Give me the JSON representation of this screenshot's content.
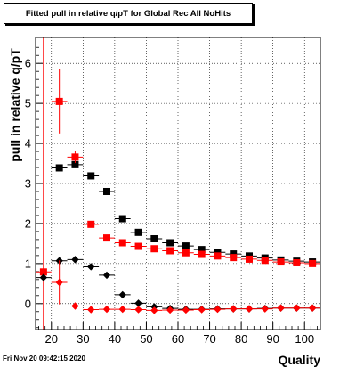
{
  "title": "Fitted pull in relative q/pT for Global Rec All NoHits",
  "timestamp": "Fri Nov 20 09:42:15 2020",
  "chart_data": {
    "type": "scatter",
    "title": "Fitted pull in relative q/pT for Global Rec All NoHits",
    "xlabel": "Quality",
    "ylabel": "pull in relative q/pT",
    "xlim": [
      15,
      105
    ],
    "ylim": [
      -0.65,
      6.65
    ],
    "x_ticks": [
      20,
      30,
      40,
      50,
      60,
      70,
      80,
      90,
      100
    ],
    "y_ticks": [
      0,
      1,
      2,
      3,
      4,
      5,
      6
    ],
    "grid": true,
    "vertical_line_x": 17.5,
    "series": [
      {
        "marker": "square",
        "color": "#000000",
        "points": [
          {
            "x": 22.5,
            "y": 3.39,
            "ey": 0.07,
            "ex": 2.5
          },
          {
            "x": 27.5,
            "y": 3.47,
            "ey": 0.05,
            "ex": 2.5
          },
          {
            "x": 32.5,
            "y": 3.19,
            "ey": 0.04,
            "ex": 2.5
          },
          {
            "x": 37.5,
            "y": 2.8,
            "ey": 0.04,
            "ex": 2.5
          },
          {
            "x": 42.5,
            "y": 2.12,
            "ey": 0.03,
            "ex": 2.5
          },
          {
            "x": 47.5,
            "y": 1.78,
            "ey": 0.03,
            "ex": 2.5
          },
          {
            "x": 52.5,
            "y": 1.62,
            "ey": 0.03,
            "ex": 2.5
          },
          {
            "x": 57.5,
            "y": 1.52,
            "ey": 0.03,
            "ex": 2.5
          },
          {
            "x": 62.5,
            "y": 1.44,
            "ey": 0.03,
            "ex": 2.5
          },
          {
            "x": 67.5,
            "y": 1.35,
            "ey": 0.03,
            "ex": 2.5
          },
          {
            "x": 72.5,
            "y": 1.28,
            "ey": 0.03,
            "ex": 2.5
          },
          {
            "x": 77.5,
            "y": 1.24,
            "ey": 0.03,
            "ex": 2.5
          },
          {
            "x": 82.5,
            "y": 1.19,
            "ey": 0.03,
            "ex": 2.5
          },
          {
            "x": 87.5,
            "y": 1.14,
            "ey": 0.03,
            "ex": 2.5
          },
          {
            "x": 92.5,
            "y": 1.09,
            "ey": 0.03,
            "ex": 2.5
          },
          {
            "x": 97.5,
            "y": 1.06,
            "ey": 0.03,
            "ex": 2.5
          },
          {
            "x": 102.5,
            "y": 1.04,
            "ey": 0.03,
            "ex": 2.5
          }
        ]
      },
      {
        "marker": "square",
        "color": "#ff0000",
        "points": [
          {
            "x": 17.5,
            "y": 0.79,
            "ey": 0.0,
            "ex": 2.5
          },
          {
            "x": 22.5,
            "y": 5.05,
            "ey": 0.8,
            "ex": 2.5
          },
          {
            "x": 27.5,
            "y": 3.66,
            "ey": 0.15,
            "ex": 2.5
          },
          {
            "x": 32.5,
            "y": 1.98,
            "ey": 0.05,
            "ex": 2.5
          },
          {
            "x": 37.5,
            "y": 1.64,
            "ey": 0.03,
            "ex": 2.5
          },
          {
            "x": 42.5,
            "y": 1.52,
            "ey": 0.03,
            "ex": 2.5
          },
          {
            "x": 47.5,
            "y": 1.43,
            "ey": 0.03,
            "ex": 2.5
          },
          {
            "x": 52.5,
            "y": 1.37,
            "ey": 0.03,
            "ex": 2.5
          },
          {
            "x": 57.5,
            "y": 1.32,
            "ey": 0.03,
            "ex": 2.5
          },
          {
            "x": 62.5,
            "y": 1.27,
            "ey": 0.03,
            "ex": 2.5
          },
          {
            "x": 67.5,
            "y": 1.23,
            "ey": 0.03,
            "ex": 2.5
          },
          {
            "x": 72.5,
            "y": 1.19,
            "ey": 0.03,
            "ex": 2.5
          },
          {
            "x": 77.5,
            "y": 1.15,
            "ey": 0.03,
            "ex": 2.5
          },
          {
            "x": 82.5,
            "y": 1.11,
            "ey": 0.03,
            "ex": 2.5
          },
          {
            "x": 87.5,
            "y": 1.08,
            "ey": 0.03,
            "ex": 2.5
          },
          {
            "x": 92.5,
            "y": 1.04,
            "ey": 0.03,
            "ex": 2.5
          },
          {
            "x": 97.5,
            "y": 1.02,
            "ey": 0.03,
            "ex": 2.5
          },
          {
            "x": 102.5,
            "y": 1.0,
            "ey": 0.03,
            "ex": 2.5
          }
        ]
      },
      {
        "marker": "diamond",
        "color": "#000000",
        "points": [
          {
            "x": 17.5,
            "y": 0.65,
            "ey": 0.0,
            "ex": 2.5
          },
          {
            "x": 22.5,
            "y": 1.07,
            "ey": 0.1,
            "ex": 2.5
          },
          {
            "x": 27.5,
            "y": 1.1,
            "ey": 0.05,
            "ex": 2.5
          },
          {
            "x": 32.5,
            "y": 0.92,
            "ey": 0.03,
            "ex": 2.5
          },
          {
            "x": 37.5,
            "y": 0.71,
            "ey": 0.03,
            "ex": 2.5
          },
          {
            "x": 42.5,
            "y": 0.22,
            "ey": 0.02,
            "ex": 2.5
          },
          {
            "x": 47.5,
            "y": 0.01,
            "ey": 0.02,
            "ex": 2.5
          },
          {
            "x": 52.5,
            "y": -0.08,
            "ey": 0.02,
            "ex": 2.5
          },
          {
            "x": 57.5,
            "y": -0.12,
            "ey": 0.02,
            "ex": 2.5
          },
          {
            "x": 62.5,
            "y": -0.14,
            "ey": 0.02,
            "ex": 2.5
          },
          {
            "x": 67.5,
            "y": -0.14,
            "ey": 0.02,
            "ex": 2.5
          },
          {
            "x": 72.5,
            "y": -0.13,
            "ey": 0.02,
            "ex": 2.5
          },
          {
            "x": 77.5,
            "y": -0.13,
            "ey": 0.02,
            "ex": 2.5
          },
          {
            "x": 82.5,
            "y": -0.13,
            "ey": 0.02,
            "ex": 2.5
          },
          {
            "x": 87.5,
            "y": -0.12,
            "ey": 0.02,
            "ex": 2.5
          },
          {
            "x": 92.5,
            "y": -0.11,
            "ey": 0.02,
            "ex": 2.5
          },
          {
            "x": 97.5,
            "y": -0.11,
            "ey": 0.02,
            "ex": 2.5
          },
          {
            "x": 102.5,
            "y": -0.11,
            "ey": 0.02,
            "ex": 2.5
          }
        ]
      },
      {
        "marker": "diamond",
        "color": "#ff0000",
        "points": [
          {
            "x": 22.5,
            "y": 0.53,
            "ey": 0.55,
            "ex": 2.5
          },
          {
            "x": 27.5,
            "y": -0.06,
            "ey": 0.06,
            "ex": 2.5
          },
          {
            "x": 32.5,
            "y": -0.15,
            "ey": 0.03,
            "ex": 2.5
          },
          {
            "x": 37.5,
            "y": -0.14,
            "ey": 0.02,
            "ex": 2.5
          },
          {
            "x": 42.5,
            "y": -0.14,
            "ey": 0.02,
            "ex": 2.5
          },
          {
            "x": 47.5,
            "y": -0.15,
            "ey": 0.02,
            "ex": 2.5
          },
          {
            "x": 52.5,
            "y": -0.17,
            "ey": 0.02,
            "ex": 2.5
          },
          {
            "x": 57.5,
            "y": -0.16,
            "ey": 0.02,
            "ex": 2.5
          },
          {
            "x": 62.5,
            "y": -0.16,
            "ey": 0.02,
            "ex": 2.5
          },
          {
            "x": 67.5,
            "y": -0.15,
            "ey": 0.02,
            "ex": 2.5
          },
          {
            "x": 72.5,
            "y": -0.14,
            "ey": 0.02,
            "ex": 2.5
          },
          {
            "x": 77.5,
            "y": -0.13,
            "ey": 0.02,
            "ex": 2.5
          },
          {
            "x": 82.5,
            "y": -0.13,
            "ey": 0.02,
            "ex": 2.5
          },
          {
            "x": 87.5,
            "y": -0.13,
            "ey": 0.02,
            "ex": 2.5
          },
          {
            "x": 92.5,
            "y": -0.11,
            "ey": 0.02,
            "ex": 2.5
          },
          {
            "x": 97.5,
            "y": -0.11,
            "ey": 0.02,
            "ex": 2.5
          },
          {
            "x": 102.5,
            "y": -0.11,
            "ey": 0.02,
            "ex": 2.5
          }
        ]
      }
    ]
  }
}
